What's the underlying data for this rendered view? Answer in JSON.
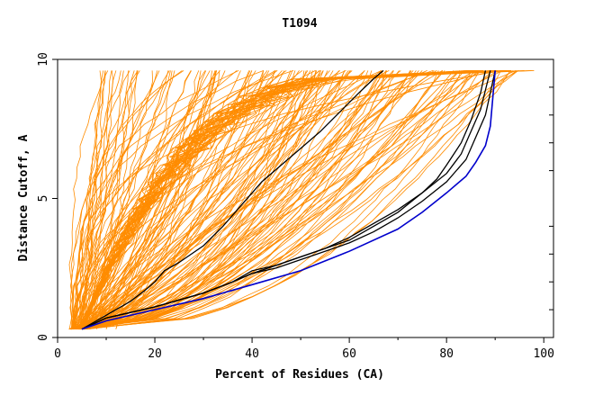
{
  "chart_data": {
    "type": "line",
    "title": "T1094",
    "xlabel": "Percent of Residues (CA)",
    "ylabel": "Distance Cutoff, A",
    "xlim": [
      0,
      102
    ],
    "ylim": [
      0,
      10
    ],
    "x_ticks": [
      0,
      20,
      40,
      60,
      80,
      100
    ],
    "y_ticks": [
      0,
      5,
      10
    ],
    "x_tick_labels": [
      "0",
      "20",
      "40",
      "60",
      "80",
      "100"
    ],
    "y_tick_labels": [
      "0",
      "5",
      "10"
    ],
    "grid": false,
    "legend": "none",
    "colors": {
      "background_group": "#ff8c00",
      "highlight_black": "#000000",
      "highlight_blue": "#0000cc"
    },
    "highlight_series": [
      {
        "color": "#000000",
        "x": [
          5,
          10,
          15,
          18,
          20,
          22,
          25,
          30,
          34,
          38,
          42,
          46,
          50,
          54,
          58,
          62,
          65,
          67
        ],
        "y": [
          0.3,
          0.8,
          1.3,
          1.7,
          2.0,
          2.4,
          2.7,
          3.3,
          4.0,
          4.8,
          5.6,
          6.2,
          6.8,
          7.4,
          8.1,
          8.8,
          9.3,
          9.6
        ]
      },
      {
        "color": "#000000",
        "x": [
          5,
          10,
          20,
          30,
          36,
          40,
          45,
          50,
          55,
          60,
          65,
          70,
          75,
          78,
          80,
          83,
          85,
          87,
          88
        ],
        "y": [
          0.3,
          0.7,
          1.1,
          1.6,
          2.0,
          2.4,
          2.6,
          2.9,
          3.2,
          3.5,
          4.0,
          4.5,
          5.2,
          5.7,
          6.2,
          7.0,
          7.8,
          8.8,
          9.6
        ]
      },
      {
        "color": "#000000",
        "x": [
          5,
          10,
          20,
          30,
          36,
          40,
          45,
          50,
          55,
          60,
          65,
          70,
          75,
          80,
          84,
          86,
          88,
          89,
          90
        ],
        "y": [
          0.3,
          0.7,
          1.1,
          1.6,
          2.0,
          2.3,
          2.5,
          2.8,
          3.1,
          3.4,
          3.8,
          4.3,
          4.9,
          5.6,
          6.4,
          7.2,
          8.0,
          8.8,
          9.6
        ]
      },
      {
        "color": "#000000",
        "x": [
          5,
          10,
          20,
          30,
          36,
          40,
          45,
          50,
          55,
          60,
          65,
          70,
          75,
          80,
          83,
          85,
          87,
          88,
          89
        ],
        "y": [
          0.3,
          0.7,
          1.1,
          1.6,
          2.0,
          2.3,
          2.6,
          2.9,
          3.2,
          3.6,
          4.1,
          4.6,
          5.2,
          5.9,
          6.6,
          7.4,
          8.2,
          8.9,
          9.6
        ]
      },
      {
        "color": "#0000cc",
        "x": [
          5,
          10,
          20,
          30,
          40,
          50,
          60,
          70,
          75,
          80,
          84,
          86,
          88,
          89,
          90
        ],
        "y": [
          0.3,
          0.6,
          1.0,
          1.4,
          1.9,
          2.4,
          3.1,
          3.9,
          4.5,
          5.2,
          5.8,
          6.3,
          6.9,
          7.6,
          9.6
        ]
      }
    ]
  }
}
